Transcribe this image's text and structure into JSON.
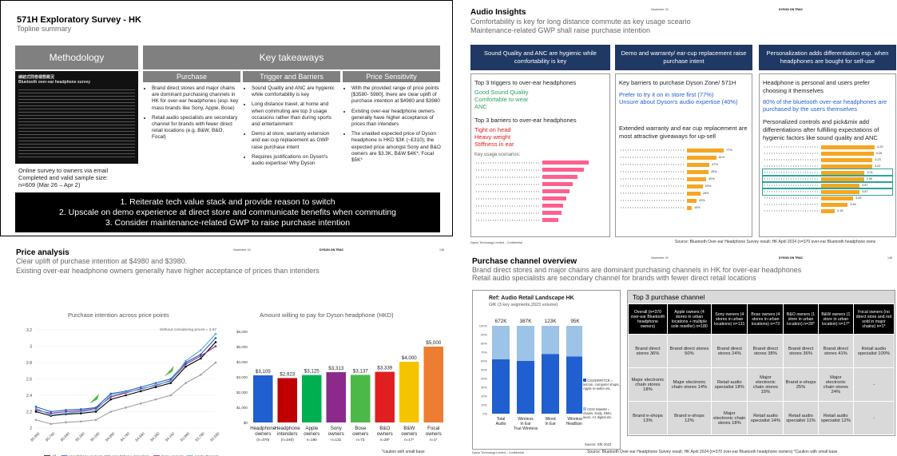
{
  "q1": {
    "title": "571H Exploratory Survey - HK",
    "subtitle": "Topline summary",
    "methodology_header": "Methodology",
    "key_header": "Key takeaways",
    "cols": [
      "Purchase",
      "Trigger and Barriers",
      "Price Sensitivity"
    ],
    "purchase": [
      "Brand direct stores and major chains are dominant purchasing channels in HK for over-ear headphones (esp. key mass brands like Sony, Apple, Bose)",
      "Retail audio specialists are secondary channel for brands with fewer direct retail locations (e.g. B&W, B&O, Focal)"
    ],
    "trigger": [
      "Sound Quality and ANC are hygienic while comfortability is key",
      "Long distance travel, at home and when commuting are top 3 usage occasions rather than during sports and entertainment",
      "Demo at store, warranty extension and ear-cup replacement as GWP raise purchase intent",
      "Requires justifications on Dyson's audio expertise/ Why Dyson"
    ],
    "price": [
      "With the provided range of price points [$3580- 5980], there are clear uplift of purchase intention at $4980 and $3980",
      "Existing over-ear headphone owners generally have higher acceptance of prices than intenders",
      "The unaided expected price of Dyson headphone is HKD $3K (~£310); the expected price amongst Sony and B&O owners are $3.3K, B&W $4K*, Focal $5K*"
    ],
    "method_text": [
      "Online survey to owners via email",
      "Completed and valid sample size:",
      "n=609 (Mar 26 – Apr 2)"
    ],
    "doc_title": "總結式問卷樣態概況",
    "doc_sub": "Bluetooth over-ear headphone survey",
    "conclusions": [
      "1.  Reiterate tech value stack and provide reason to switch",
      "2.  Upscale on demo experience at direct store and communicate benefits when commuting",
      "3.  Consider maintenance-related GWP to raise purchase intention"
    ]
  },
  "q2": {
    "date": "November 24",
    "brand": "DYSON ON TRAC",
    "title": "Audio Insights",
    "sub1": "Comfortability is key for long distance commute as key usage sceario",
    "sub2": "Maintenance-related GWP shall raise purchase intention",
    "boxes": [
      "Sound Quality and ANC are hygienic while comfortability is key",
      "Demo and warranty/ ear-cup replacement raise purchase intent",
      "Personalization adds differentiation esp. when headphones are bought for self-use"
    ],
    "c1": {
      "triggers_title": "Top 3 triggers to over-ear headphones",
      "triggers": [
        "Good Sound Quality",
        "Comfortable to wear",
        "ANC"
      ],
      "barriers_title": "Top 3 barriers to over-ear headphones",
      "barriers": [
        "Tight on head",
        "Heavy weight",
        "Stiffness in ear"
      ],
      "usage_title": "Key usage scenarios:"
    },
    "c2": {
      "title": "Key barriers to purchase Dyson Zone/ 571H",
      "blue": [
        "Prefer to try it on in store first (77%)",
        "Unsure about Dyson's audio expertise (40%)"
      ],
      "text": "Extended warranty and ear cup replacement are most attractive giveaways for up-sell"
    },
    "c3": {
      "t1": "Headphone is personal and users prefer choosing it themselves",
      "blue": "80% of the bluetooth over-ear headphones are purchased by the users themselves",
      "t2": "Personalized controls and pick&mix add differentiations after fulfilling expectations of hygienic factors like sound quality and ANC"
    },
    "footer_left": "Dyson Technology Limited – Confidential",
    "footer": "Source: Bluetooth Over-ear Headphone Survey result; HK April 2024 (n=370 over-ear Bluetooth headphone owns"
  },
  "q3": {
    "title": "Price analysis",
    "date": "November 24",
    "brand": "DYSON ON TRAC",
    "page": "138",
    "sub1": "Clear uplift of purchase intention at $4980 and $3980.",
    "sub2": "Existing over-ear headphone owners generally have higher acceptance of prices than intenders",
    "note": "*caution with small base"
  },
  "q4": {
    "date": "November 24",
    "brand": "DYSON ON TRAC",
    "page": "148",
    "title": "Purchase channel overview",
    "sub1": "Brand direct stores and major chains are dominant purchasing channels in HK for over-ear headphones",
    "sub2": "Retail audio specialists are secondary channel for brands with fewer direct retail locations",
    "chart_title": "Ref: Audio Retail Landscape HK",
    "chart_sub": "GfK (3 key segments,2023 volume)",
    "legend": [
      "CSS/DRR/TCR = telcom, computer shops, Apple re-seller etc.",
      "CES/ MassM = chains, Daily, DMA, aeon, A1 digital etc."
    ],
    "source": "Source: GfK 2023",
    "table_title": "Top 3 purchase channel",
    "headers": [
      "Overall (n=370 over-ear Bluetooth headphone owners)",
      "Apple owners (4 stores in urban locations + multiple sole reseller) n=180",
      "Sony owners (4 stores in urban locations) n=131",
      "Bose owners (4 stores in urban locations) n=73",
      "B&O owners (1 store in urban location) n=28*",
      "B&W owners (1 store in urban location) n=17*",
      "Focal owners (no direct store and not sold in major chains) n=1*"
    ],
    "rows": [
      [
        "Brand direct stores 36%",
        "Brand direct stores 50%",
        "Brand direct stores 24%",
        "Brand direct stores 38%",
        "Brand direct stores 36%",
        "Brand direct stores 41%",
        "Retail audio specialist 100%"
      ],
      [
        "Major electronic chain stores 18%",
        "Major electronic chain stores 14%",
        "Retail audio specialist 18%",
        "Major electronic chain stores 15%",
        "Brand e-shops 25%",
        "Major electronic chain stores 24%",
        "-"
      ],
      [
        "Brand e-shops 13%",
        "Brand e-shops 12%",
        "Major electronic chain stores 18%",
        "Retail audio specialist 14%",
        "Retail audio specialist 11%",
        "Retail audio specialist 12%",
        "-"
      ]
    ],
    "footer_left": "Dyson Technology Limited – Confidential",
    "footer": "Source: Bluetooth Over-ear Headphone Survey result; HK April 2024 (n=370 over-ear Bluetooth headphone owners)  *Caution with small base"
  },
  "chart_data": [
    {
      "type": "line",
      "title": "Purchase intention across price points",
      "annotation": "Without considering prices = 3.87",
      "x": [
        "$5,980",
        "$5,780",
        "$5,580",
        "$5,380",
        "$5,180",
        "$4,980",
        "$4,780",
        "$4,580",
        "$4,380",
        "$4,180",
        "$3,980",
        "$3,780",
        "$3,580"
      ],
      "ylim": [
        2,
        3.2
      ],
      "yticks": [
        "2",
        "2.2",
        "2.4",
        "2.6",
        "2.8",
        "3",
        "3.2"
      ],
      "series": [
        {
          "name": "All",
          "color": "#000000",
          "values": [
            2.2,
            2.15,
            2.17,
            2.18,
            2.2,
            2.35,
            2.4,
            2.45,
            2.5,
            2.55,
            2.75,
            2.85,
            3.05
          ]
        },
        {
          "name": "Headphone owners",
          "color": "#1f5fd0",
          "values": [
            2.26,
            2.2,
            2.22,
            2.23,
            2.25,
            2.42,
            2.45,
            2.5,
            2.55,
            2.6,
            2.8,
            2.9,
            3.1
          ]
        },
        {
          "name": "Headphone intenders",
          "color": "#a0a0a0",
          "values": [
            2.1,
            2.05,
            2.07,
            2.08,
            2.1,
            2.2,
            2.25,
            2.3,
            2.35,
            2.4,
            2.55,
            2.65,
            2.8
          ]
        },
        {
          "name": "Sony owners",
          "color": "#8b2a8b",
          "values": [
            2.22,
            2.18,
            2.2,
            2.21,
            2.24,
            2.38,
            2.43,
            2.48,
            2.52,
            2.58,
            2.78,
            2.88,
            3.0
          ]
        },
        {
          "name": "Apple Owners",
          "color": "#5fa8d0",
          "values": [
            2.24,
            2.16,
            2.18,
            2.2,
            2.22,
            2.4,
            2.44,
            2.47,
            2.53,
            2.57,
            2.82,
            2.95,
            3.15
          ]
        }
      ]
    },
    {
      "type": "bar",
      "title": "Amount willing to pay for Dyson headphone (HKD)",
      "categories": [
        "Headphone owners (n=370)",
        "Headphone intenders (n=240)",
        "Apple owners n=180",
        "Sony owners n=131",
        "Bose owners n=73",
        "B&O owners n=28*",
        "B&W owners n=17*",
        "Focal owners n=1*"
      ],
      "values": [
        3105,
        2923,
        3125,
        3313,
        3137,
        3339,
        4000,
        5000
      ],
      "labels": [
        "$3,105",
        "$2,923",
        "$3,125",
        "$3,313",
        "$3,137",
        "$3,339",
        "$4,000",
        "$5,000"
      ],
      "colors": [
        "#1f5fd0",
        "#c00000",
        "#00b050",
        "#8b2a8b",
        "#4cb848",
        "#e02020",
        "#f5c400",
        "#ed7d31"
      ],
      "ylim": [
        0,
        6000
      ],
      "yticks": [
        "$0",
        "$1,000",
        "$2,000",
        "$3,000",
        "$4,000",
        "$5,000",
        "$6,000"
      ]
    },
    {
      "type": "bar",
      "title": "Ref: Audio Retail Landscape HK",
      "categories": [
        "Total Audio",
        "Wireless In Ear True Wireless",
        "Wired In Ear",
        "Wireless Headband"
      ],
      "labels": [
        "672K",
        "387K",
        "123K",
        "95K"
      ],
      "series": [
        {
          "name": "CSS/DRR/TCR",
          "color": "#1f5fd0",
          "values": [
            0.62,
            0.6,
            0.68,
            0.65
          ]
        },
        {
          "name": "CES/ MassM",
          "color": "#9dc3e6",
          "values": [
            0.38,
            0.4,
            0.32,
            0.35
          ]
        }
      ]
    },
    {
      "type": "bar",
      "title": "Key usage scenarios:",
      "values": [
        0.72,
        0.65,
        0.55,
        0.48,
        0.42,
        0.38,
        0.33,
        0.3,
        0.25
      ],
      "color": "#ff5f8f"
    },
    {
      "type": "bar",
      "title": "Key barriers",
      "values": [
        0.77,
        0.61,
        0.47,
        0.45,
        0.4,
        0.33,
        0.28,
        0.2,
        0.1
      ],
      "labels": [
        "77%",
        "61%",
        "47%",
        "45%",
        "40%",
        "33%",
        "28%",
        "20%",
        "10%"
      ],
      "color": "#f5a623"
    },
    {
      "type": "bar",
      "title": "Personalization",
      "values": [
        4.29,
        4.26,
        4.23,
        4.22,
        4.01,
        3.99,
        3.87,
        3.87,
        3.69,
        3.54,
        3.18
      ],
      "labels": [
        "4.29",
        "4.26",
        "4.23",
        "4.22",
        "4.01",
        "3.99",
        "3.87",
        "3.87",
        "3.69",
        "3.54",
        "3.18"
      ],
      "color": "#f5a623"
    }
  ]
}
